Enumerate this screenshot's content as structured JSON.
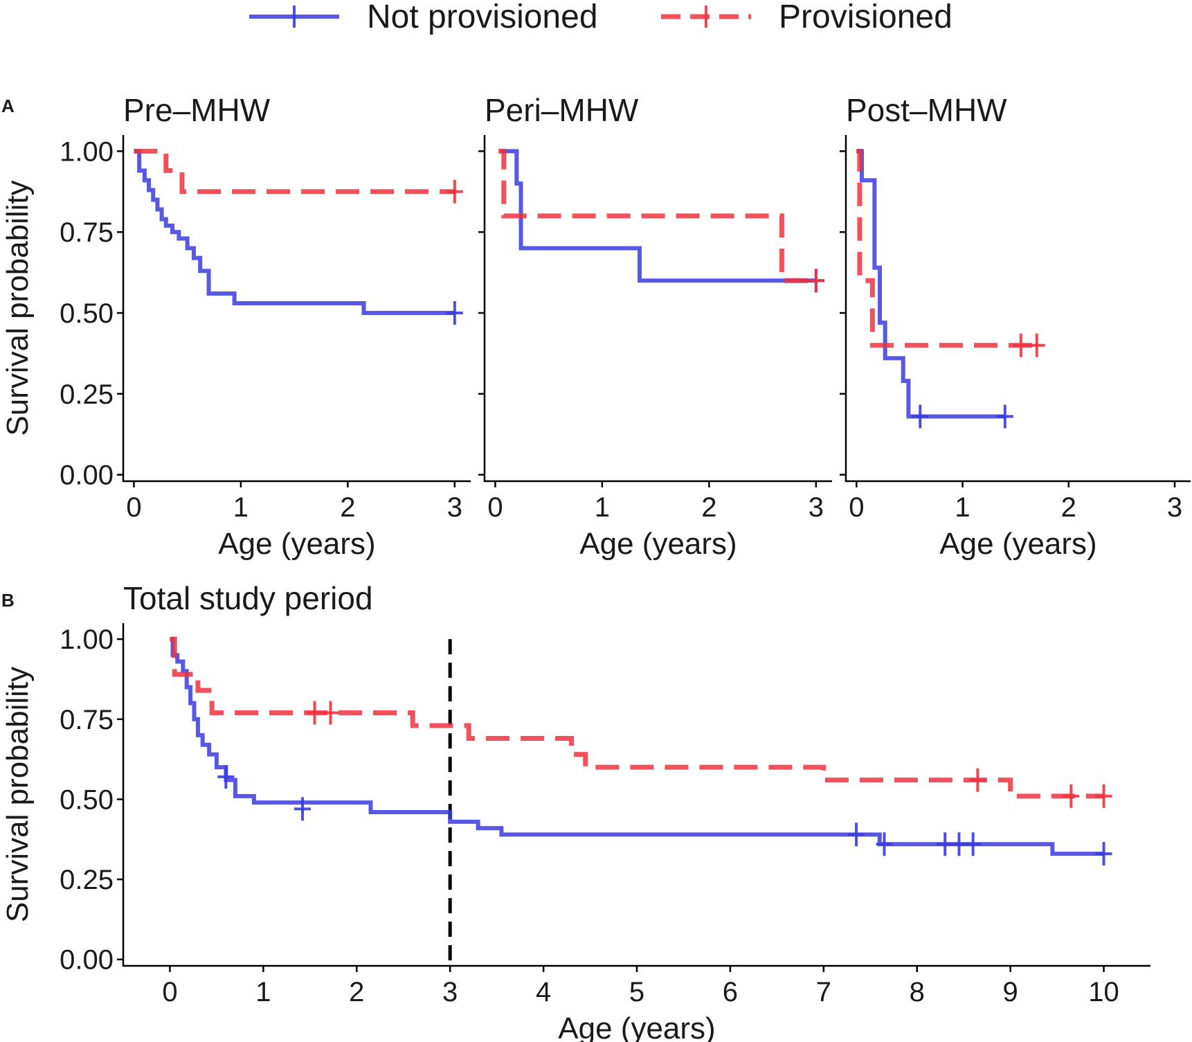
{
  "legend": {
    "items": [
      {
        "name": "Not provisioned",
        "color": "#3b3bdf",
        "dashed": false
      },
      {
        "name": "Provisioned",
        "color": "#ee3340",
        "dashed": true
      }
    ]
  },
  "chart_data": [
    {
      "type": "step",
      "panel_tag": "A",
      "title": "Pre–MHW",
      "xlabel": "Age (years)",
      "ylabel": "Survival probability",
      "xlim": [
        -0.1,
        3.15
      ],
      "ylim": [
        -0.02,
        1.05
      ],
      "xticks": [
        0,
        1,
        2,
        3
      ],
      "yticks": [
        0,
        0.25,
        0.5,
        0.75,
        1
      ],
      "ytick_labels": [
        "0.00",
        "0.25",
        "0.50",
        "0.75",
        "1.00"
      ],
      "show_y_title": true,
      "show_y_labels": true,
      "series": [
        {
          "name": "Not provisioned",
          "x": [
            0,
            0.05,
            0.1,
            0.14,
            0.18,
            0.22,
            0.26,
            0.3,
            0.36,
            0.42,
            0.5,
            0.56,
            0.62,
            0.7,
            0.94,
            2.15,
            3.0
          ],
          "y": [
            1.0,
            0.94,
            0.91,
            0.88,
            0.85,
            0.82,
            0.79,
            0.77,
            0.75,
            0.73,
            0.7,
            0.67,
            0.63,
            0.56,
            0.53,
            0.5,
            0.5
          ],
          "censor_x": [
            3.0
          ],
          "censor_y": [
            0.5
          ]
        },
        {
          "name": "Provisioned",
          "x": [
            0,
            0.3,
            0.45,
            3.0
          ],
          "y": [
            1.0,
            0.94,
            0.875,
            0.875
          ],
          "censor_x": [
            3.0
          ],
          "censor_y": [
            0.875
          ]
        }
      ]
    },
    {
      "type": "step",
      "panel_tag": "",
      "title": "Peri–MHW",
      "xlabel": "Age (years)",
      "ylabel": "",
      "xlim": [
        -0.1,
        3.15
      ],
      "ylim": [
        -0.02,
        1.05
      ],
      "xticks": [
        0,
        1,
        2,
        3
      ],
      "yticks": [
        0,
        0.25,
        0.5,
        0.75,
        1
      ],
      "ytick_labels": [
        "",
        "",
        "",
        "",
        ""
      ],
      "show_y_title": false,
      "show_y_labels": false,
      "series": [
        {
          "name": "Not provisioned",
          "x": [
            0.05,
            0.2,
            0.24,
            1.35,
            3.0
          ],
          "y": [
            1.0,
            0.9,
            0.7,
            0.6,
            0.6
          ],
          "censor_x": [
            3.0
          ],
          "censor_y": [
            0.6
          ]
        },
        {
          "name": "Provisioned",
          "x": [
            0.03,
            0.08,
            2.68,
            3.0
          ],
          "y": [
            1.0,
            0.8,
            0.6,
            0.6
          ],
          "censor_x": [
            3.0
          ],
          "censor_y": [
            0.6
          ]
        }
      ]
    },
    {
      "type": "step",
      "panel_tag": "",
      "title": "Post–MHW",
      "xlabel": "Age (years)",
      "ylabel": "",
      "xlim": [
        -0.1,
        3.15
      ],
      "ylim": [
        -0.02,
        1.05
      ],
      "xticks": [
        0,
        1,
        2,
        3
      ],
      "yticks": [
        0,
        0.25,
        0.5,
        0.75,
        1
      ],
      "ytick_labels": [
        "",
        "",
        "",
        "",
        ""
      ],
      "show_y_title": false,
      "show_y_labels": false,
      "series": [
        {
          "name": "Not provisioned",
          "x": [
            0,
            0.05,
            0.17,
            0.22,
            0.27,
            0.44,
            0.49,
            1.4
          ],
          "y": [
            1.0,
            0.91,
            0.64,
            0.47,
            0.36,
            0.29,
            0.18,
            0.18
          ],
          "censor_x": [
            0.6,
            1.4
          ],
          "censor_y": [
            0.18,
            0.18
          ]
        },
        {
          "name": "Provisioned",
          "x": [
            0,
            0.03,
            0.15,
            1.75
          ],
          "y": [
            1.0,
            0.6,
            0.4,
            0.4
          ],
          "censor_x": [
            1.55,
            1.7
          ],
          "censor_y": [
            0.4,
            0.4
          ]
        }
      ]
    },
    {
      "type": "step",
      "panel_tag": "B",
      "title": "Total study period",
      "xlabel": "Age (years)",
      "ylabel": "Survival probability",
      "xlim": [
        -0.5,
        10.5
      ],
      "ylim": [
        -0.02,
        1.05
      ],
      "xticks": [
        0,
        1,
        2,
        3,
        4,
        5,
        6,
        7,
        8,
        9,
        10
      ],
      "yticks": [
        0,
        0.25,
        0.5,
        0.75,
        1
      ],
      "ytick_labels": [
        "0.00",
        "0.25",
        "0.50",
        "0.75",
        "1.00"
      ],
      "show_y_title": true,
      "show_y_labels": true,
      "vline_x": 3,
      "series": [
        {
          "name": "Not provisioned",
          "x": [
            0,
            0.03,
            0.08,
            0.14,
            0.18,
            0.22,
            0.26,
            0.3,
            0.35,
            0.42,
            0.5,
            0.6,
            0.7,
            0.9,
            2.15,
            3.0,
            3.3,
            3.55,
            7.6,
            9.45,
            10.0
          ],
          "y": [
            1.0,
            0.95,
            0.93,
            0.9,
            0.85,
            0.8,
            0.75,
            0.7,
            0.67,
            0.64,
            0.6,
            0.56,
            0.51,
            0.49,
            0.46,
            0.43,
            0.41,
            0.39,
            0.36,
            0.33,
            0.33
          ],
          "censor_x": [
            0.6,
            1.42,
            7.35,
            7.65,
            8.3,
            8.45,
            8.6,
            10.0
          ],
          "censor_y": [
            0.57,
            0.47,
            0.39,
            0.36,
            0.36,
            0.36,
            0.36,
            0.33
          ]
        },
        {
          "name": "Provisioned",
          "x": [
            0,
            0.05,
            0.3,
            0.45,
            2.6,
            3.2,
            4.3,
            4.45,
            7.0,
            9.0,
            10.0
          ],
          "y": [
            1.0,
            0.89,
            0.84,
            0.77,
            0.73,
            0.69,
            0.64,
            0.6,
            0.56,
            0.51,
            0.51
          ],
          "censor_x": [
            1.55,
            1.72,
            8.65,
            9.65,
            10.0
          ],
          "censor_y": [
            0.77,
            0.77,
            0.56,
            0.51,
            0.51
          ]
        }
      ]
    }
  ]
}
